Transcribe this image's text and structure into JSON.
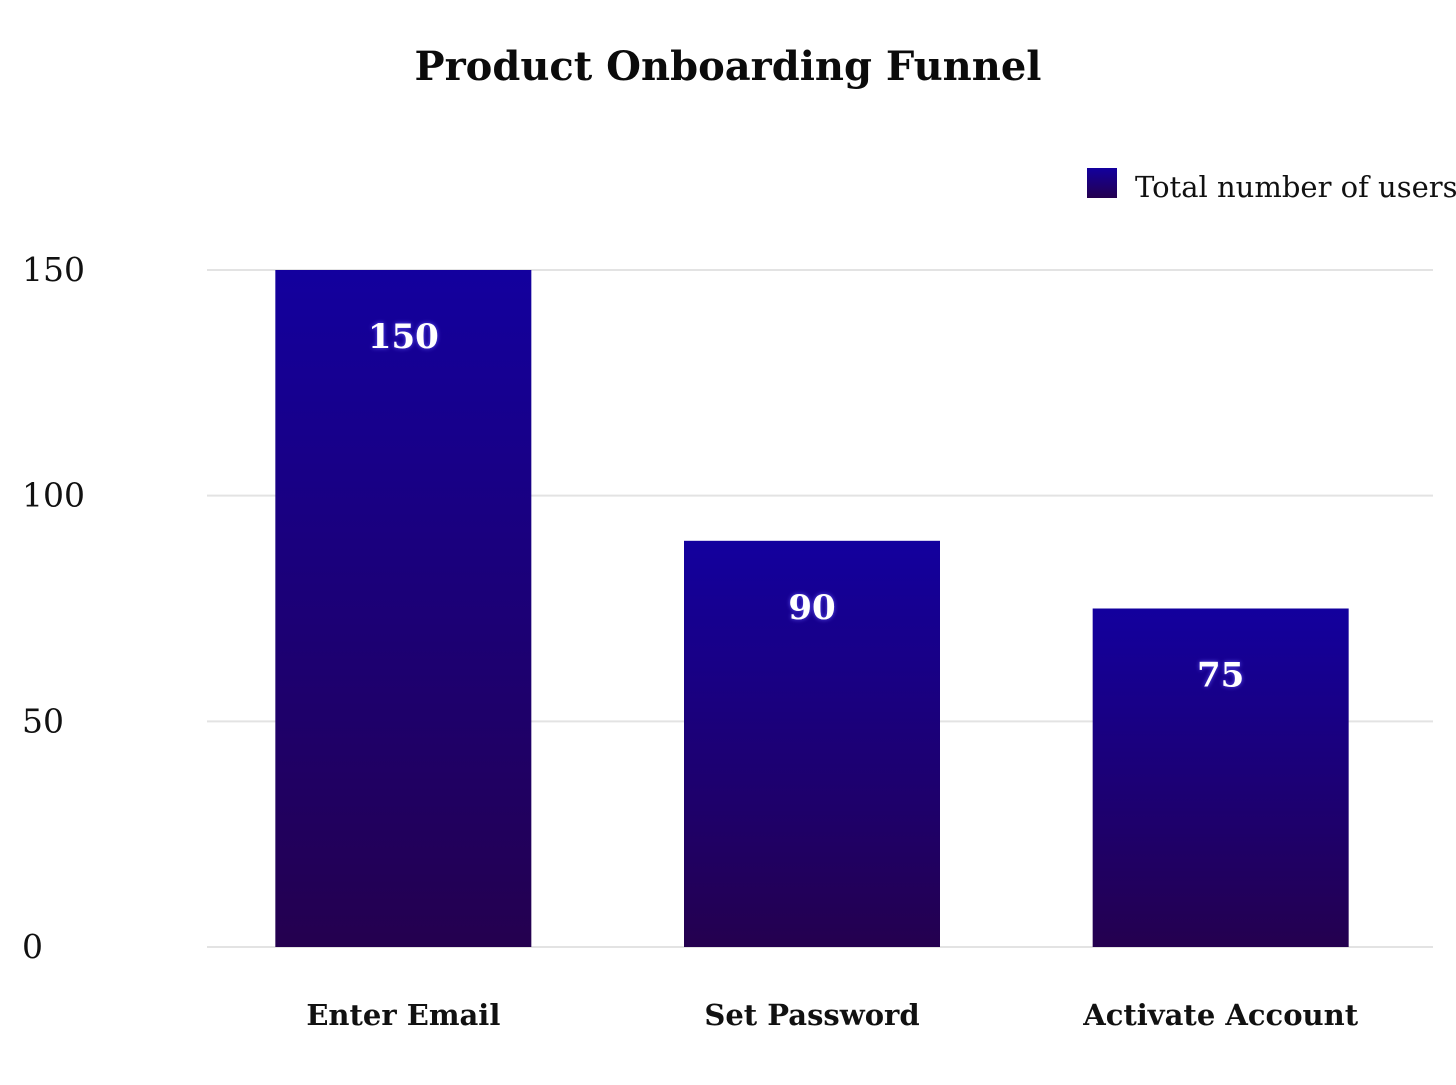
{
  "chart_data": {
    "type": "bar",
    "title": "Product Onboarding Funnel",
    "categories": [
      "Enter Email",
      "Set Password",
      "Activate Account"
    ],
    "series": [
      {
        "name": "Total number of users",
        "values": [
          150,
          90,
          75
        ],
        "color_top": "#13009e",
        "color_bottom": "#24004f"
      }
    ],
    "y_ticks": [
      0,
      50,
      100,
      150
    ],
    "ylim": [
      0,
      150
    ],
    "xlabel": "",
    "ylabel": "",
    "grid": true,
    "gridline_color": "#e3e3e3",
    "legend_position": "top-right",
    "value_label_color": "#ffffff"
  }
}
